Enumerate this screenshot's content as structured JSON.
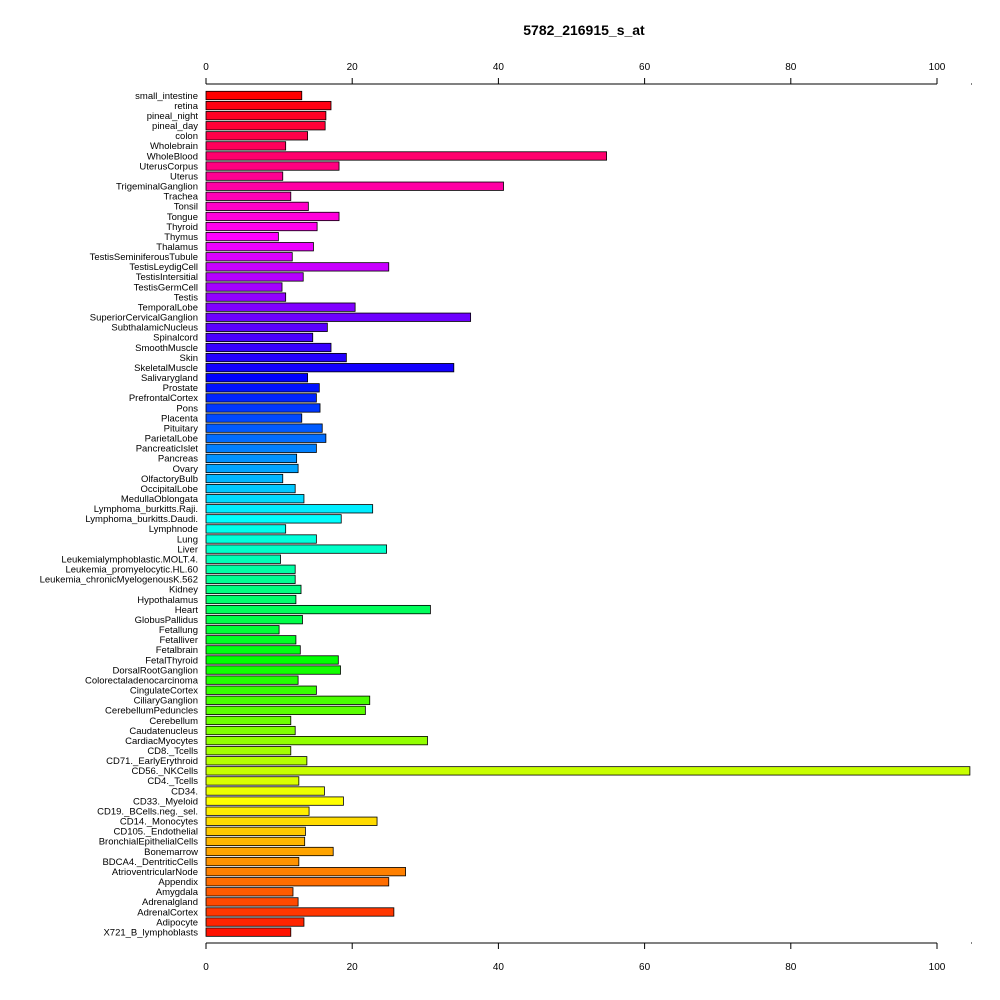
{
  "chart_data": {
    "type": "bar",
    "orientation": "horizontal",
    "title": "5782_216915_s_at",
    "xlabel": "",
    "ylabel": "",
    "xlim": [
      0,
      100
    ],
    "xticks": [
      0,
      20,
      40,
      60,
      80,
      100
    ],
    "xtick_labels": [
      "0",
      "20",
      "40",
      "60",
      "80",
      "100"
    ],
    "grid": false,
    "legend": "none",
    "color_scheme": "rainbow from red (top) through magenta, blue, cyan, green, yellow, orange to red (bottom)",
    "bar_outline_color": "#000000",
    "categories": [
      "small_intestine",
      "retina",
      "pineal_night",
      "pineal_day",
      "colon",
      "Wholebrain",
      "WholeBlood",
      "UterusCorpus",
      "Uterus",
      "TrigeminalGanglion",
      "Trachea",
      "Tonsil",
      "Tongue",
      "Thyroid",
      "Thymus",
      "Thalamus",
      "TestisSeminiferousTubule",
      "TestisLeydigCell",
      "TestisIntersitial",
      "TestisGermCell",
      "Testis",
      "TemporalLobe",
      "SuperiorCervicalGanglion",
      "SubthalamicNucleus",
      "Spinalcord",
      "SmoothMuscle",
      "Skin",
      "SkeletalMuscle",
      "Salivarygland",
      "Prostate",
      "PrefrontalCortex",
      "Pons",
      "Placenta",
      "Pituitary",
      "ParietalLobe",
      "PancreaticIslet",
      "Pancreas",
      "Ovary",
      "OlfactoryBulb",
      "OccipitalLobe",
      "MedullaOblongata",
      "Lymphoma_burkitts.Raji.",
      "Lymphoma_burkitts.Daudi.",
      "Lymphnode",
      "Lung",
      "Liver",
      "Leukemialymphoblastic.MOLT.4.",
      "Leukemia_promyelocytic.HL.60",
      "Leukemia_chronicMyelogenousK.562",
      "Kidney",
      "Hypothalamus",
      "Heart",
      "GlobusPallidus",
      "Fetallung",
      "Fetalliver",
      "Fetalbrain",
      "FetalThyroid",
      "DorsalRootGanglion",
      "Colorectaladenocarcinoma",
      "CingulateCortex",
      "CiliaryGanglion",
      "CerebellumPeduncles",
      "Cerebellum",
      "Caudatenucleus",
      "CardiacMyocytes",
      "CD8._Tcells",
      "CD71._EarlyErythroid",
      "CD56._NKCells",
      "CD4._Tcells",
      "CD34.",
      "CD33._Myeloid",
      "CD19._BCells.neg._sel.",
      "CD14._Monocytes",
      "CD105._Endothelial",
      "BronchialEpithelialCells",
      "Bonemarrow",
      "BDCA4._DentriticCells",
      "AtrioventricularNode",
      "Appendix",
      "Amygdala",
      "Adrenalgland",
      "AdrenalCortex",
      "Adipocyte",
      "X721_B_lymphoblasts"
    ],
    "values": [
      13.1,
      17.1,
      16.4,
      16.3,
      13.9,
      10.9,
      54.8,
      18.2,
      10.5,
      40.7,
      11.6,
      14.0,
      18.2,
      15.2,
      9.9,
      14.7,
      11.8,
      25.0,
      13.3,
      10.4,
      10.9,
      20.4,
      36.2,
      16.6,
      14.6,
      17.1,
      19.2,
      33.9,
      13.9,
      15.5,
      15.1,
      15.6,
      13.1,
      15.9,
      16.4,
      15.1,
      12.4,
      12.6,
      10.5,
      12.2,
      13.4,
      22.8,
      18.5,
      10.9,
      15.1,
      24.7,
      10.2,
      12.2,
      12.2,
      13.0,
      12.3,
      30.7,
      13.2,
      10.0,
      12.3,
      12.9,
      18.1,
      18.4,
      12.6,
      15.1,
      22.4,
      21.8,
      11.6,
      12.2,
      30.3,
      11.6,
      13.8,
      104.5,
      12.7,
      16.2,
      18.8,
      14.1,
      23.4,
      13.6,
      13.5,
      17.4,
      12.7,
      27.3,
      25.0,
      11.9,
      12.6,
      25.7,
      13.4,
      11.6
    ]
  }
}
